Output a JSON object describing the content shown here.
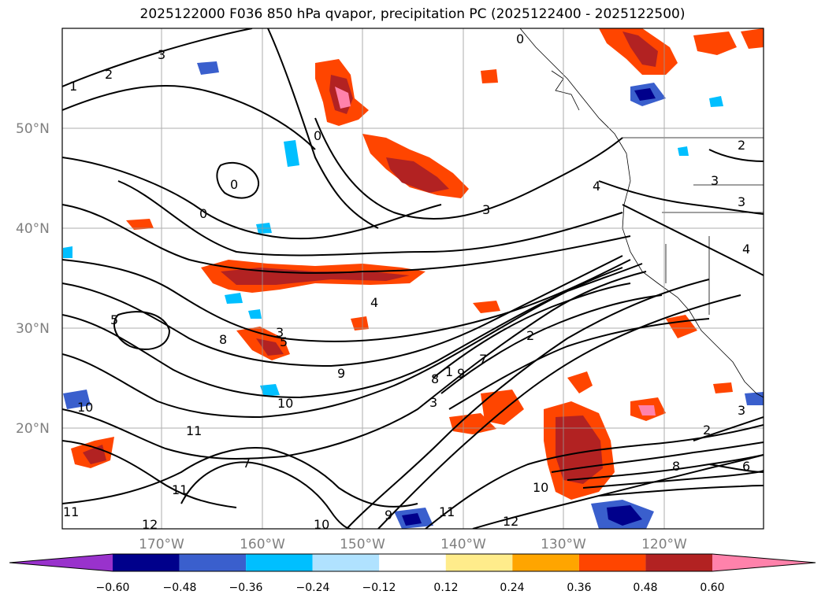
{
  "title": "2025122000 F036 850 hPa qvapor, precipitation PC (2025122400 - 2025122500)",
  "latitude_labels": [
    "50°N",
    "40°N",
    "30°N",
    "20°N"
  ],
  "longitude_labels": [
    "170°W",
    "160°W",
    "150°W",
    "140°W",
    "130°W",
    "120°W"
  ],
  "colorbar": {
    "tick_labels": [
      "−0.60",
      "−0.48",
      "−0.36",
      "−0.24",
      "−0.12",
      "0.12",
      "0.24",
      "0.36",
      "0.48",
      "0.60"
    ],
    "colors": [
      "#9932cc",
      "#00008b",
      "#3a5fcd",
      "#00bfff",
      "#b0e2ff",
      "#ffffff",
      "#ffec8b",
      "#ffa500",
      "#ff4500",
      "#b22222",
      "#ff82ab"
    ]
  },
  "contour_labels": [
    "1",
    "2",
    "3",
    "0",
    "0",
    "0",
    "0",
    "3",
    "4",
    "2",
    "3",
    "3",
    "4",
    "5",
    "8",
    "3",
    "4",
    "5",
    "9",
    "8",
    "7",
    "9",
    "10",
    "10",
    "11",
    "7",
    "11",
    "12",
    "11",
    "10",
    "9",
    "11",
    "12",
    "10",
    "8",
    "2",
    "6",
    "3",
    "1",
    "2",
    "3"
  ]
}
